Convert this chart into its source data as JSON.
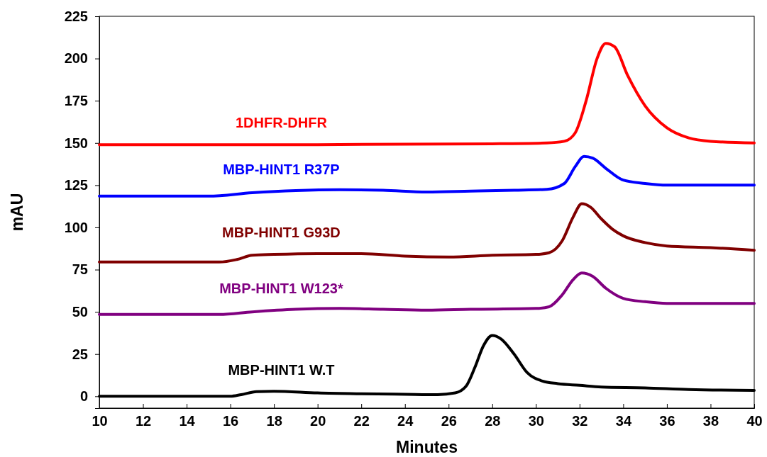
{
  "chart_data": {
    "type": "line",
    "xlabel": "Minutes",
    "ylabel": "mAU",
    "xlim": [
      10,
      40
    ],
    "xticks": [
      10,
      12,
      14,
      16,
      18,
      20,
      22,
      24,
      26,
      28,
      30,
      32,
      34,
      36,
      38,
      40
    ],
    "ylim": [
      -7,
      225
    ],
    "yticks": [
      0,
      25,
      50,
      75,
      100,
      125,
      150,
      175,
      200,
      225
    ],
    "grid": false,
    "legend": false,
    "marker": "none",
    "line_style": "solid",
    "series": [
      {
        "name": "1DHFR-DHFR",
        "color": "#ff0000",
        "x": [
          10,
          20,
          28,
          30.5,
          31.3,
          31.8,
          32.3,
          32.8,
          33.2,
          33.6,
          34.2,
          35,
          36,
          37,
          38,
          40
        ],
        "values": [
          149,
          149,
          149.5,
          150,
          151,
          156,
          175,
          200,
          209,
          207,
          190,
          172,
          159,
          153,
          151,
          150
        ]
      },
      {
        "name": "MBP-HINT1 R37P",
        "color": "#0000ff",
        "x": [
          10,
          15,
          17,
          19,
          21,
          23,
          25,
          27,
          29,
          30.5,
          31.3,
          31.8,
          32.2,
          32.6,
          33.2,
          34,
          35,
          36,
          40
        ],
        "values": [
          118.5,
          118.5,
          120.5,
          121.8,
          122.3,
          122,
          121,
          121.5,
          122,
          122.5,
          126,
          136,
          142,
          141,
          135,
          128,
          126,
          125,
          125
        ]
      },
      {
        "name": "MBP-HINT1 G93D",
        "color": "#800000",
        "x": [
          10,
          15.5,
          16.3,
          17,
          18,
          20,
          22,
          24,
          26,
          28,
          30,
          30.6,
          31.2,
          31.7,
          32.1,
          32.5,
          33,
          33.5,
          34,
          35,
          36,
          38,
          40
        ],
        "values": [
          79.5,
          79.5,
          81,
          83.5,
          84,
          84.5,
          84.5,
          83,
          82.5,
          83.5,
          84,
          85,
          92,
          106,
          114,
          112,
          105,
          99,
          95,
          91,
          89,
          88,
          86.5
        ]
      },
      {
        "name": "MBP-HINT1 W123*",
        "color": "#800080",
        "x": [
          10,
          15.5,
          17,
          19,
          21,
          23,
          25,
          27,
          30,
          30.6,
          31.2,
          31.7,
          32.1,
          32.6,
          33.2,
          34,
          35,
          36,
          40
        ],
        "values": [
          48.5,
          48.5,
          50,
          51.5,
          52,
          51.5,
          51,
          51.5,
          52,
          53,
          60,
          69,
          73,
          71,
          64,
          58,
          56,
          55,
          55
        ]
      },
      {
        "name": "MBP-HINT1 W.T",
        "color": "#000000",
        "x": [
          10,
          16,
          16.5,
          17.2,
          18,
          20,
          22,
          24,
          25.5,
          26.3,
          26.8,
          27.2,
          27.6,
          28,
          28.4,
          29,
          29.6,
          30.3,
          31,
          32,
          33,
          35,
          37,
          40
        ],
        "values": [
          0,
          0,
          1,
          2.8,
          3,
          2,
          1.5,
          1.2,
          1,
          2,
          6,
          17,
          30,
          36,
          34,
          25,
          14,
          9,
          7.5,
          6.5,
          5.5,
          5,
          4,
          3.5
        ]
      }
    ]
  }
}
